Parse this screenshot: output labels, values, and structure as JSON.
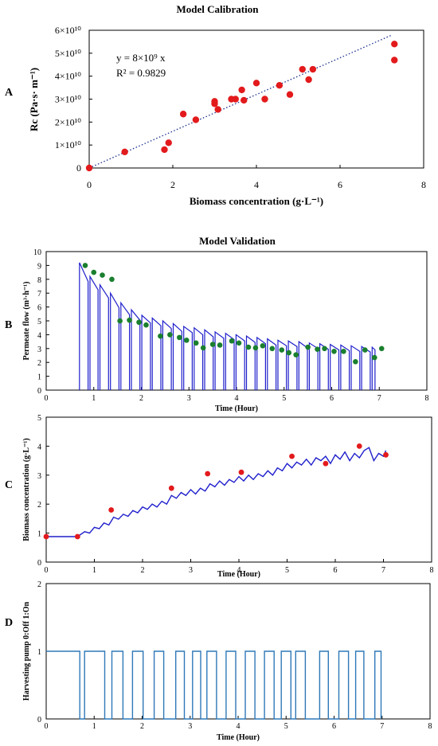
{
  "figure": {
    "title_a": "Model Calibration",
    "title_b": "Model Validation",
    "panel_letters": [
      "A",
      "B",
      "C",
      "D"
    ]
  },
  "colors": {
    "red": "#e31a1c",
    "green": "#1a7f2e",
    "blue": "#1f1fcc",
    "step": "#2f78b8",
    "fit": "#1a2f8c"
  },
  "chart_data": [
    {
      "id": "A",
      "type": "scatter",
      "xlabel": "Biomass concentration (g·L⁻¹)",
      "ylabel": "Rc (Pa·s· m⁻¹)",
      "xlim": [
        0,
        8
      ],
      "ylim": [
        0,
        60000000000.0
      ],
      "xticks": [
        "0",
        "2",
        "4",
        "6",
        "8"
      ],
      "yticks": [
        "0",
        "1×10¹⁰",
        "2×10¹⁰",
        "3×10¹⁰",
        "4×10¹⁰",
        "5×10¹⁰",
        "6×10¹⁰"
      ],
      "annotation_eq": "y = 8×10⁹ x",
      "annotation_r2": "R² = 0.9829",
      "fit": {
        "slope": 8000000000.0,
        "x_range": [
          0,
          7.25
        ]
      },
      "points": [
        [
          0,
          0
        ],
        [
          0.85,
          7000000000.0
        ],
        [
          1.8,
          8000000000.0
        ],
        [
          1.9,
          11000000000.0
        ],
        [
          2.25,
          23500000000.0
        ],
        [
          2.55,
          21000000000.0
        ],
        [
          3.0,
          28000000000.0
        ],
        [
          3.0,
          29000000000.0
        ],
        [
          3.08,
          25500000000.0
        ],
        [
          3.4,
          30000000000.0
        ],
        [
          3.5,
          30000000000.0
        ],
        [
          3.65,
          34000000000.0
        ],
        [
          3.7,
          29500000000.0
        ],
        [
          4.0,
          37000000000.0
        ],
        [
          4.2,
          30000000000.0
        ],
        [
          4.55,
          36000000000.0
        ],
        [
          4.8,
          32000000000.0
        ],
        [
          5.1,
          43000000000.0
        ],
        [
          5.25,
          38500000000.0
        ],
        [
          5.35,
          43000000000.0
        ],
        [
          7.3,
          54000000000.0
        ],
        [
          7.3,
          47000000000.0
        ]
      ]
    },
    {
      "id": "B",
      "type": "line",
      "xlabel": "Time (Hour)",
      "ylabel": "Permeate flow (m³·h⁻¹)",
      "xlim": [
        0,
        8
      ],
      "ylim": [
        0,
        10
      ],
      "xticks": [
        "0",
        "1",
        "2",
        "3",
        "4",
        "5",
        "6",
        "7",
        "8"
      ],
      "yticks": [
        "0",
        "1",
        "2",
        "3",
        "4",
        "5",
        "6",
        "7",
        "8",
        "9",
        "10"
      ],
      "simulated_peaks": [
        [
          0.7,
          9.2
        ],
        [
          0.92,
          8.2
        ],
        [
          1.13,
          7.6
        ],
        [
          1.35,
          7.0
        ],
        [
          1.57,
          6.3
        ],
        [
          1.79,
          5.8
        ],
        [
          2.01,
          5.4
        ],
        [
          2.23,
          5.2
        ],
        [
          2.45,
          5.0
        ],
        [
          2.67,
          4.8
        ],
        [
          2.89,
          4.6
        ],
        [
          3.11,
          4.5
        ],
        [
          3.33,
          4.35
        ],
        [
          3.55,
          4.2
        ],
        [
          3.77,
          4.1
        ],
        [
          3.99,
          4.0
        ],
        [
          4.21,
          3.9
        ],
        [
          4.43,
          3.8
        ],
        [
          4.65,
          3.7
        ],
        [
          4.87,
          3.6
        ],
        [
          5.09,
          3.55
        ],
        [
          5.31,
          3.5
        ],
        [
          5.53,
          3.4
        ],
        [
          5.75,
          3.35
        ],
        [
          5.97,
          3.3
        ],
        [
          6.19,
          3.25
        ],
        [
          6.41,
          3.2
        ],
        [
          6.63,
          3.15
        ],
        [
          6.85,
          3.1
        ]
      ],
      "simulated_end": [
        6.95,
        3.1
      ],
      "observed_green": [
        [
          0.82,
          9.0
        ],
        [
          1.0,
          8.5
        ],
        [
          1.18,
          8.3
        ],
        [
          1.38,
          8.0
        ],
        [
          1.55,
          5.0
        ],
        [
          1.75,
          5.05
        ],
        [
          1.95,
          4.9
        ],
        [
          2.1,
          4.7
        ],
        [
          2.4,
          3.9
        ],
        [
          2.6,
          4.0
        ],
        [
          2.8,
          3.8
        ],
        [
          2.95,
          3.6
        ],
        [
          3.15,
          3.4
        ],
        [
          3.3,
          3.05
        ],
        [
          3.5,
          3.3
        ],
        [
          3.65,
          3.25
        ],
        [
          3.9,
          3.55
        ],
        [
          4.05,
          3.4
        ],
        [
          4.25,
          3.1
        ],
        [
          4.4,
          3.05
        ],
        [
          4.55,
          3.2
        ],
        [
          4.75,
          3.0
        ],
        [
          4.95,
          2.9
        ],
        [
          5.1,
          2.7
        ],
        [
          5.25,
          2.55
        ],
        [
          5.5,
          3.1
        ],
        [
          5.7,
          2.95
        ],
        [
          5.85,
          3.0
        ],
        [
          6.05,
          2.8
        ],
        [
          6.25,
          2.8
        ],
        [
          6.5,
          2.05
        ],
        [
          6.7,
          2.9
        ],
        [
          6.9,
          2.35
        ],
        [
          7.05,
          3.0
        ]
      ]
    },
    {
      "id": "C",
      "type": "line",
      "xlabel": "Time (Hour)",
      "ylabel": "Biomass concentration (g·L⁻¹)",
      "xlim": [
        0,
        8
      ],
      "ylim": [
        0,
        5
      ],
      "xticks": [
        "0",
        "1",
        "2",
        "3",
        "4",
        "5",
        "6",
        "7",
        "8"
      ],
      "yticks": [
        "0",
        "1",
        "2",
        "3",
        "4",
        "5"
      ],
      "simulated": [
        [
          0,
          0.88
        ],
        [
          0.65,
          0.88
        ],
        [
          0.8,
          1.05
        ],
        [
          0.9,
          1.0
        ],
        [
          1.0,
          1.2
        ],
        [
          1.1,
          1.15
        ],
        [
          1.2,
          1.35
        ],
        [
          1.3,
          1.28
        ],
        [
          1.4,
          1.55
        ],
        [
          1.5,
          1.48
        ],
        [
          1.6,
          1.65
        ],
        [
          1.7,
          1.58
        ],
        [
          1.8,
          1.78
        ],
        [
          1.9,
          1.7
        ],
        [
          2.0,
          1.9
        ],
        [
          2.1,
          1.82
        ],
        [
          2.2,
          2.0
        ],
        [
          2.3,
          1.9
        ],
        [
          2.4,
          2.1
        ],
        [
          2.5,
          2.0
        ],
        [
          2.6,
          2.3
        ],
        [
          2.7,
          2.2
        ],
        [
          2.8,
          2.4
        ],
        [
          2.9,
          2.3
        ],
        [
          3.0,
          2.5
        ],
        [
          3.1,
          2.35
        ],
        [
          3.2,
          2.55
        ],
        [
          3.3,
          2.45
        ],
        [
          3.4,
          2.7
        ],
        [
          3.5,
          2.6
        ],
        [
          3.6,
          2.8
        ],
        [
          3.7,
          2.65
        ],
        [
          3.8,
          2.85
        ],
        [
          3.9,
          2.75
        ],
        [
          4.0,
          2.95
        ],
        [
          4.1,
          2.8
        ],
        [
          4.2,
          3.0
        ],
        [
          4.3,
          2.85
        ],
        [
          4.4,
          3.05
        ],
        [
          4.5,
          2.95
        ],
        [
          4.6,
          3.15
        ],
        [
          4.7,
          3.0
        ],
        [
          4.8,
          3.25
        ],
        [
          4.9,
          3.15
        ],
        [
          5.0,
          3.4
        ],
        [
          5.1,
          3.25
        ],
        [
          5.2,
          3.45
        ],
        [
          5.3,
          3.35
        ],
        [
          5.4,
          3.55
        ],
        [
          5.5,
          3.35
        ],
        [
          5.6,
          3.6
        ],
        [
          5.7,
          3.5
        ],
        [
          5.8,
          3.65
        ],
        [
          5.9,
          3.4
        ],
        [
          6.0,
          3.7
        ],
        [
          6.1,
          3.55
        ],
        [
          6.2,
          3.8
        ],
        [
          6.3,
          3.5
        ],
        [
          6.4,
          3.75
        ],
        [
          6.5,
          3.6
        ],
        [
          6.6,
          3.85
        ],
        [
          6.7,
          3.95
        ],
        [
          6.8,
          3.5
        ],
        [
          6.9,
          3.75
        ],
        [
          7.0,
          3.65
        ],
        [
          7.05,
          3.85
        ]
      ],
      "observed_red": [
        [
          0,
          0.88
        ],
        [
          0.65,
          0.88
        ],
        [
          1.35,
          1.8
        ],
        [
          2.6,
          2.55
        ],
        [
          3.35,
          3.05
        ],
        [
          4.05,
          3.1
        ],
        [
          5.1,
          3.65
        ],
        [
          5.8,
          3.4
        ],
        [
          6.5,
          4.0
        ],
        [
          7.05,
          3.7
        ]
      ]
    },
    {
      "id": "D",
      "type": "line",
      "xlabel": "Time (Hour)",
      "ylabel": "Harvesting pump 0:Off 1:On",
      "xlim": [
        0,
        8
      ],
      "ylim": [
        0,
        2
      ],
      "xticks": [
        "0",
        "1",
        "2",
        "3",
        "4",
        "5",
        "6",
        "7",
        "8"
      ],
      "yticks": [
        "0",
        "1",
        "2"
      ],
      "on_intervals": [
        [
          0,
          0.7
        ],
        [
          0.8,
          1.22
        ],
        [
          1.37,
          1.6
        ],
        [
          1.8,
          2.02
        ],
        [
          2.25,
          2.45
        ],
        [
          2.7,
          2.88
        ],
        [
          3.05,
          3.22
        ],
        [
          3.35,
          3.55
        ],
        [
          3.75,
          3.95
        ],
        [
          4.15,
          4.35
        ],
        [
          4.55,
          4.75
        ],
        [
          4.9,
          5.1
        ],
        [
          5.2,
          5.4
        ],
        [
          5.7,
          5.88
        ],
        [
          6.1,
          6.3
        ],
        [
          6.45,
          6.62
        ],
        [
          6.85,
          6.98
        ]
      ]
    }
  ]
}
